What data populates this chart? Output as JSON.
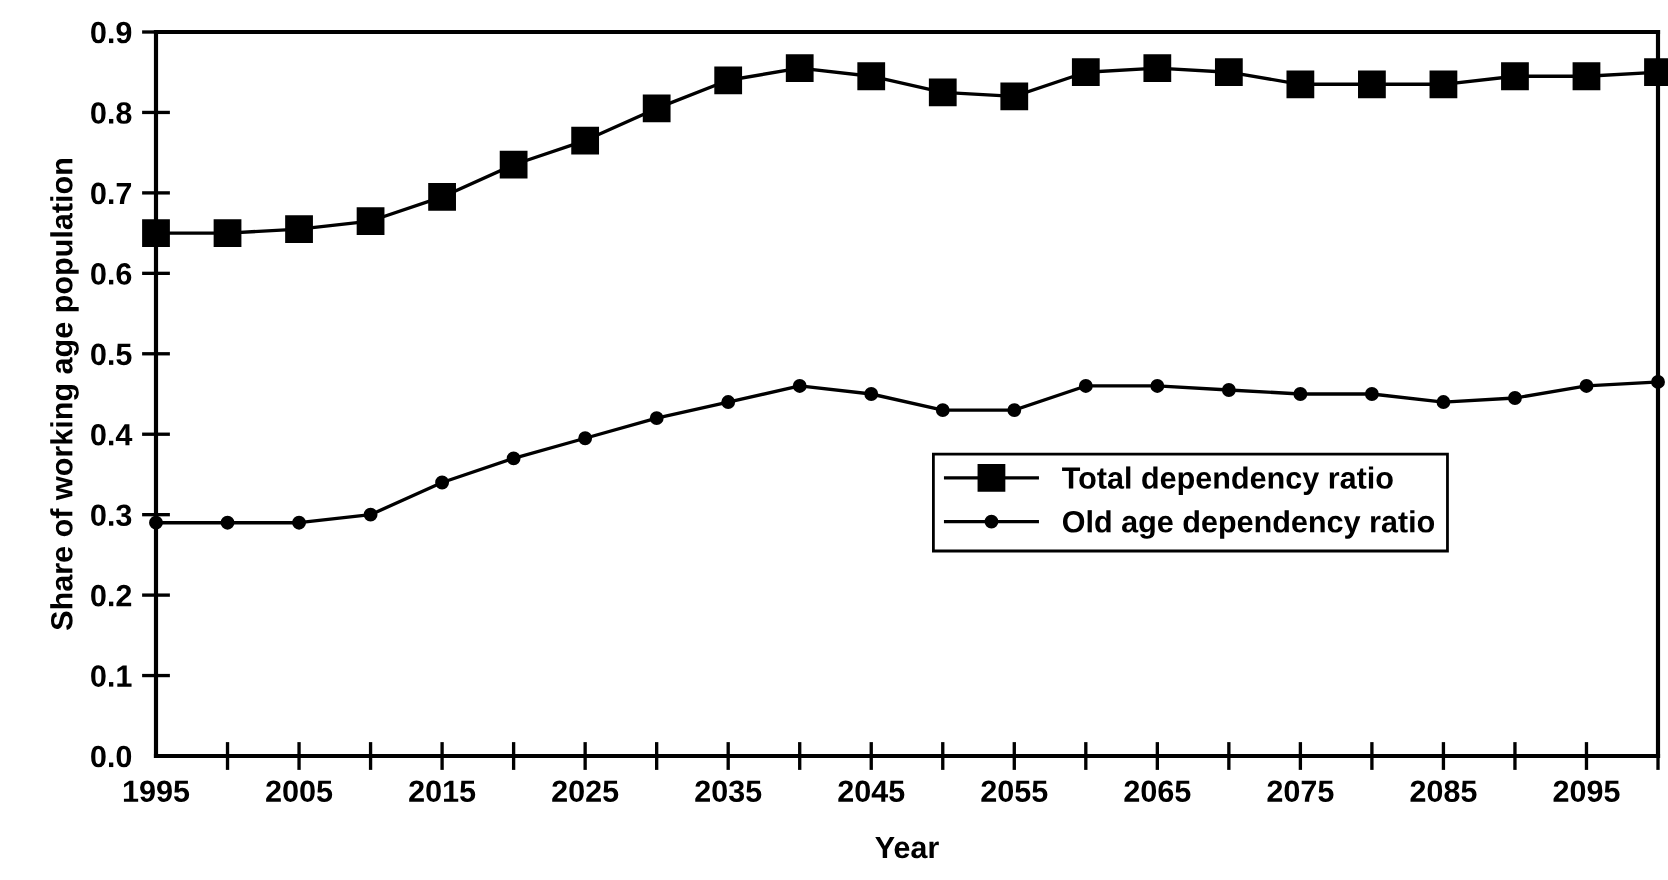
{
  "chart_data": {
    "type": "line",
    "xlabel": "Year",
    "ylabel": "Share of working age population",
    "x": [
      1995,
      2000,
      2005,
      2010,
      2015,
      2020,
      2025,
      2030,
      2035,
      2040,
      2045,
      2050,
      2055,
      2060,
      2065,
      2070,
      2075,
      2080,
      2085,
      2090,
      2095,
      2100
    ],
    "series": [
      {
        "name": "Total dependency ratio",
        "color": "#000000",
        "marker": "square",
        "values": [
          0.65,
          0.65,
          0.655,
          0.665,
          0.695,
          0.735,
          0.765,
          0.805,
          0.84,
          0.855,
          0.845,
          0.825,
          0.82,
          0.85,
          0.855,
          0.85,
          0.835,
          0.835,
          0.835,
          0.845,
          0.845,
          0.85
        ]
      },
      {
        "name": "Old age dependency ratio",
        "color": "#000000",
        "marker": "circle",
        "values": [
          0.29,
          0.29,
          0.29,
          0.3,
          0.34,
          0.37,
          0.395,
          0.42,
          0.44,
          0.46,
          0.45,
          0.43,
          0.43,
          0.46,
          0.46,
          0.455,
          0.45,
          0.45,
          0.44,
          0.445,
          0.46,
          0.465
        ]
      }
    ],
    "xlim": [
      1995,
      2100
    ],
    "xticks": [
      1995,
      {
        "value": 2000,
        "label": null
      },
      2005,
      {
        "value": 2010,
        "label": null
      },
      2015,
      {
        "value": 2020,
        "label": null
      },
      2025,
      {
        "value": 2030,
        "label": null
      },
      2035,
      {
        "value": 2040,
        "label": null
      },
      2045,
      {
        "value": 2050,
        "label": null
      },
      2055,
      {
        "value": 2060,
        "label": null
      },
      2065,
      {
        "value": 2070,
        "label": null
      },
      2075,
      {
        "value": 2080,
        "label": null
      },
      2085,
      {
        "value": 2090,
        "label": null
      },
      2095,
      {
        "value": 2100,
        "label": null
      }
    ],
    "ylim": [
      0,
      0.9
    ],
    "yticks": [
      {
        "value": 0,
        "label": "0.0"
      },
      0.1,
      0.2,
      0.3,
      0.4,
      0.5,
      0.6,
      0.7,
      0.8,
      0.9
    ],
    "grid": false,
    "legend": "right",
    "line_style": "solid"
  }
}
